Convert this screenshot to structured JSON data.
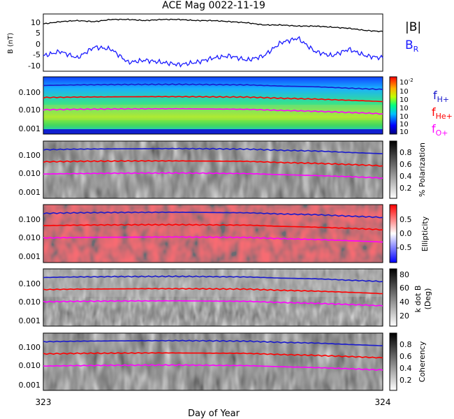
{
  "title": "ACE Mag 0022-11-19",
  "xlabel": "Day of Year",
  "colors": {
    "B": "#000000",
    "BR": "#1a1aff",
    "fH": "#1a1acc",
    "fHe": "#ff0000",
    "fO": "#ff00ff"
  },
  "chart_data": [
    {
      "type": "line",
      "panel": "magnetic-field",
      "ylabel": "B (nT)",
      "ylim": [
        -12,
        14
      ],
      "yticks": [
        "10",
        "5",
        "0",
        "-5",
        "-10"
      ],
      "xlim": [
        323,
        324
      ],
      "xticks": [
        "323",
        "324"
      ],
      "series": [
        {
          "name": "|B|",
          "x": [
            323.0,
            323.05,
            323.1,
            323.15,
            323.2,
            323.25,
            323.3,
            323.35,
            323.4,
            323.45,
            323.5,
            323.55,
            323.6,
            323.65,
            323.7,
            323.75,
            323.8,
            323.85,
            323.9,
            323.95,
            324.0
          ],
          "values": [
            9.5,
            10.5,
            11,
            10.5,
            11.5,
            11.5,
            11,
            11.5,
            11.5,
            11,
            11,
            10.5,
            10,
            9,
            9,
            8.5,
            8.5,
            8,
            7.5,
            6.5,
            6
          ]
        },
        {
          "name": "B_R",
          "label_main": "B",
          "label_sub": "R",
          "x": [
            323.0,
            323.05,
            323.1,
            323.15,
            323.2,
            323.25,
            323.3,
            323.35,
            323.4,
            323.45,
            323.5,
            323.55,
            323.6,
            323.65,
            323.7,
            323.75,
            323.8,
            323.85,
            323.9,
            323.95,
            324.0
          ],
          "values": [
            -5,
            -3,
            -6,
            -1,
            -2,
            -8,
            -7,
            -8,
            -9,
            -8,
            -6,
            -5,
            -7,
            -5,
            1,
            3,
            -3,
            -5,
            -2,
            -5,
            -6
          ]
        }
      ]
    },
    {
      "type": "heatmap",
      "panel": "power-spectrum",
      "yscale": "log",
      "yticks": [
        "0.100",
        "0.010",
        "0.001"
      ],
      "colorbar_ticks": [
        "10",
        "10",
        "10",
        "10",
        "10",
        "10",
        "10"
      ],
      "colorbar_top_exp": "-2",
      "legend": [
        {
          "main": "f",
          "sub": "H+"
        },
        {
          "main": "f",
          "sub": "He+"
        },
        {
          "main": "f",
          "sub": "O+"
        }
      ]
    },
    {
      "type": "heatmap",
      "panel": "polarization",
      "yscale": "log",
      "yticks": [
        "0.100",
        "0.010",
        "0.001"
      ],
      "colorbar_label": "% Polarization",
      "colorbar_ticks": [
        "0.8",
        "0.6",
        "0.4",
        "0.2"
      ]
    },
    {
      "type": "heatmap",
      "panel": "ellipticity",
      "yscale": "log",
      "yticks": [
        "0.100",
        "0.010",
        "0.001"
      ],
      "colorbar_label": "Ellipticity",
      "colorbar_ticks": [
        "0.5",
        "0.0",
        "-0.5"
      ]
    },
    {
      "type": "heatmap",
      "panel": "k-dot-b",
      "yscale": "log",
      "yticks": [
        "0.100",
        "0.010",
        "0.001"
      ],
      "colorbar_label": "k dot B",
      "colorbar_label2": "(Deg)",
      "colorbar_ticks": [
        "80",
        "60",
        "40",
        "20"
      ]
    },
    {
      "type": "heatmap",
      "panel": "coherency",
      "yscale": "log",
      "yticks": [
        "0.100",
        "0.010",
        "0.001"
      ],
      "colorbar_label": "Coherency",
      "colorbar_ticks": [
        "0.8",
        "0.6",
        "0.4",
        "0.2"
      ]
    }
  ],
  "gyrofrequencies": {
    "x": [
      323.0,
      323.1,
      323.2,
      323.3,
      323.4,
      323.5,
      323.6,
      323.7,
      323.8,
      323.9,
      324.0
    ],
    "fH": [
      0.15,
      0.16,
      0.165,
      0.168,
      0.17,
      0.165,
      0.16,
      0.14,
      0.13,
      0.11,
      0.095
    ],
    "fHe": [
      0.038,
      0.04,
      0.041,
      0.042,
      0.042,
      0.041,
      0.04,
      0.035,
      0.032,
      0.028,
      0.024
    ],
    "fO": [
      0.0095,
      0.01,
      0.0103,
      0.0105,
      0.0106,
      0.0103,
      0.01,
      0.0088,
      0.008,
      0.007,
      0.006
    ]
  }
}
